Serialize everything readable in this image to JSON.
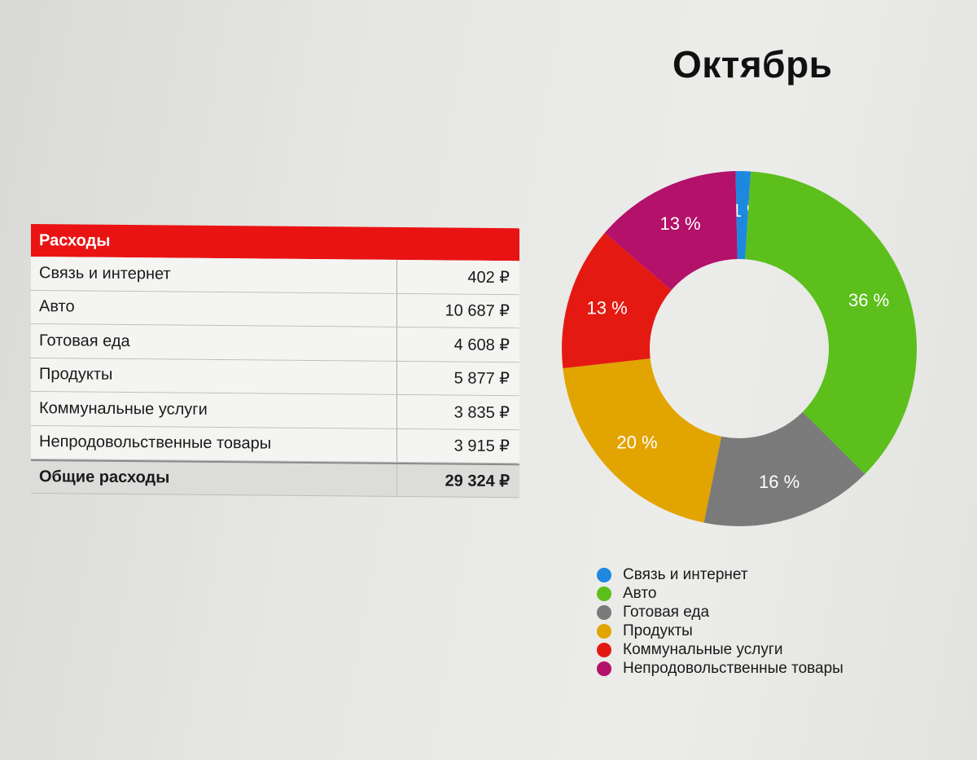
{
  "title": "Октябрь",
  "table": {
    "header": "Расходы",
    "rows": [
      {
        "label": "Связь и интернет",
        "value": "402 ₽"
      },
      {
        "label": "Авто",
        "value": "10 687 ₽"
      },
      {
        "label": "Готовая еда",
        "value": "4 608 ₽"
      },
      {
        "label": "Продукты",
        "value": "5 877 ₽"
      },
      {
        "label": "Коммунальные услуги",
        "value": "3 835 ₽"
      },
      {
        "label": "Непродовольственные товары",
        "value": "3 915 ₽"
      }
    ],
    "total": {
      "label": "Общие расходы",
      "value": "29 324 ₽"
    }
  },
  "chart_data": {
    "type": "pie",
    "donut": true,
    "categories": [
      "Связь и интернет",
      "Авто",
      "Готовая еда",
      "Продукты",
      "Коммунальные услуги",
      "Непродовольственные товары"
    ],
    "values": [
      402,
      10687,
      4608,
      5877,
      3835,
      3915
    ],
    "percent_labels": [
      "1 %",
      "36 %",
      "16 %",
      "20 %",
      "13 %",
      "13 %"
    ],
    "colors": [
      "#1e88e0",
      "#5cbf1c",
      "#7a7a7a",
      "#e2a400",
      "#e41a12",
      "#b3116a"
    ],
    "legend_position": "bottom"
  }
}
